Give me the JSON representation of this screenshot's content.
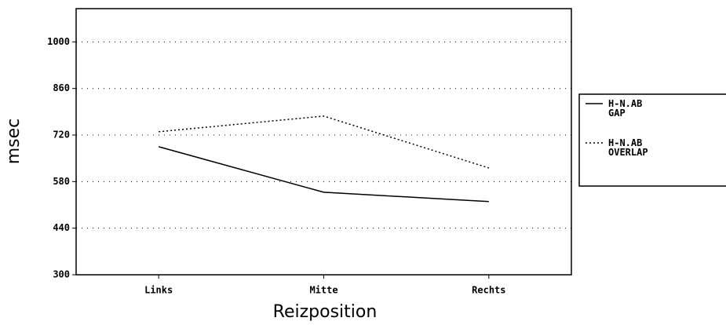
{
  "chart_data": {
    "type": "line",
    "x_label": "Reizposition",
    "y_label": "msec",
    "categories": [
      "Links",
      "Mitte",
      "Rechts"
    ],
    "series": [
      {
        "name": "H-N.AB GAP",
        "color": "#000000",
        "dash": "solid",
        "values": [
          685,
          548,
          520
        ]
      },
      {
        "name": "H-N.AB OVERLAP",
        "color": "#000000",
        "dash": "dotted",
        "values": [
          730,
          777,
          621
        ]
      }
    ],
    "ylim": [
      300,
      1100
    ],
    "yticks": [
      300,
      440,
      580,
      720,
      860,
      1000
    ],
    "grid": true,
    "legend": "right"
  }
}
